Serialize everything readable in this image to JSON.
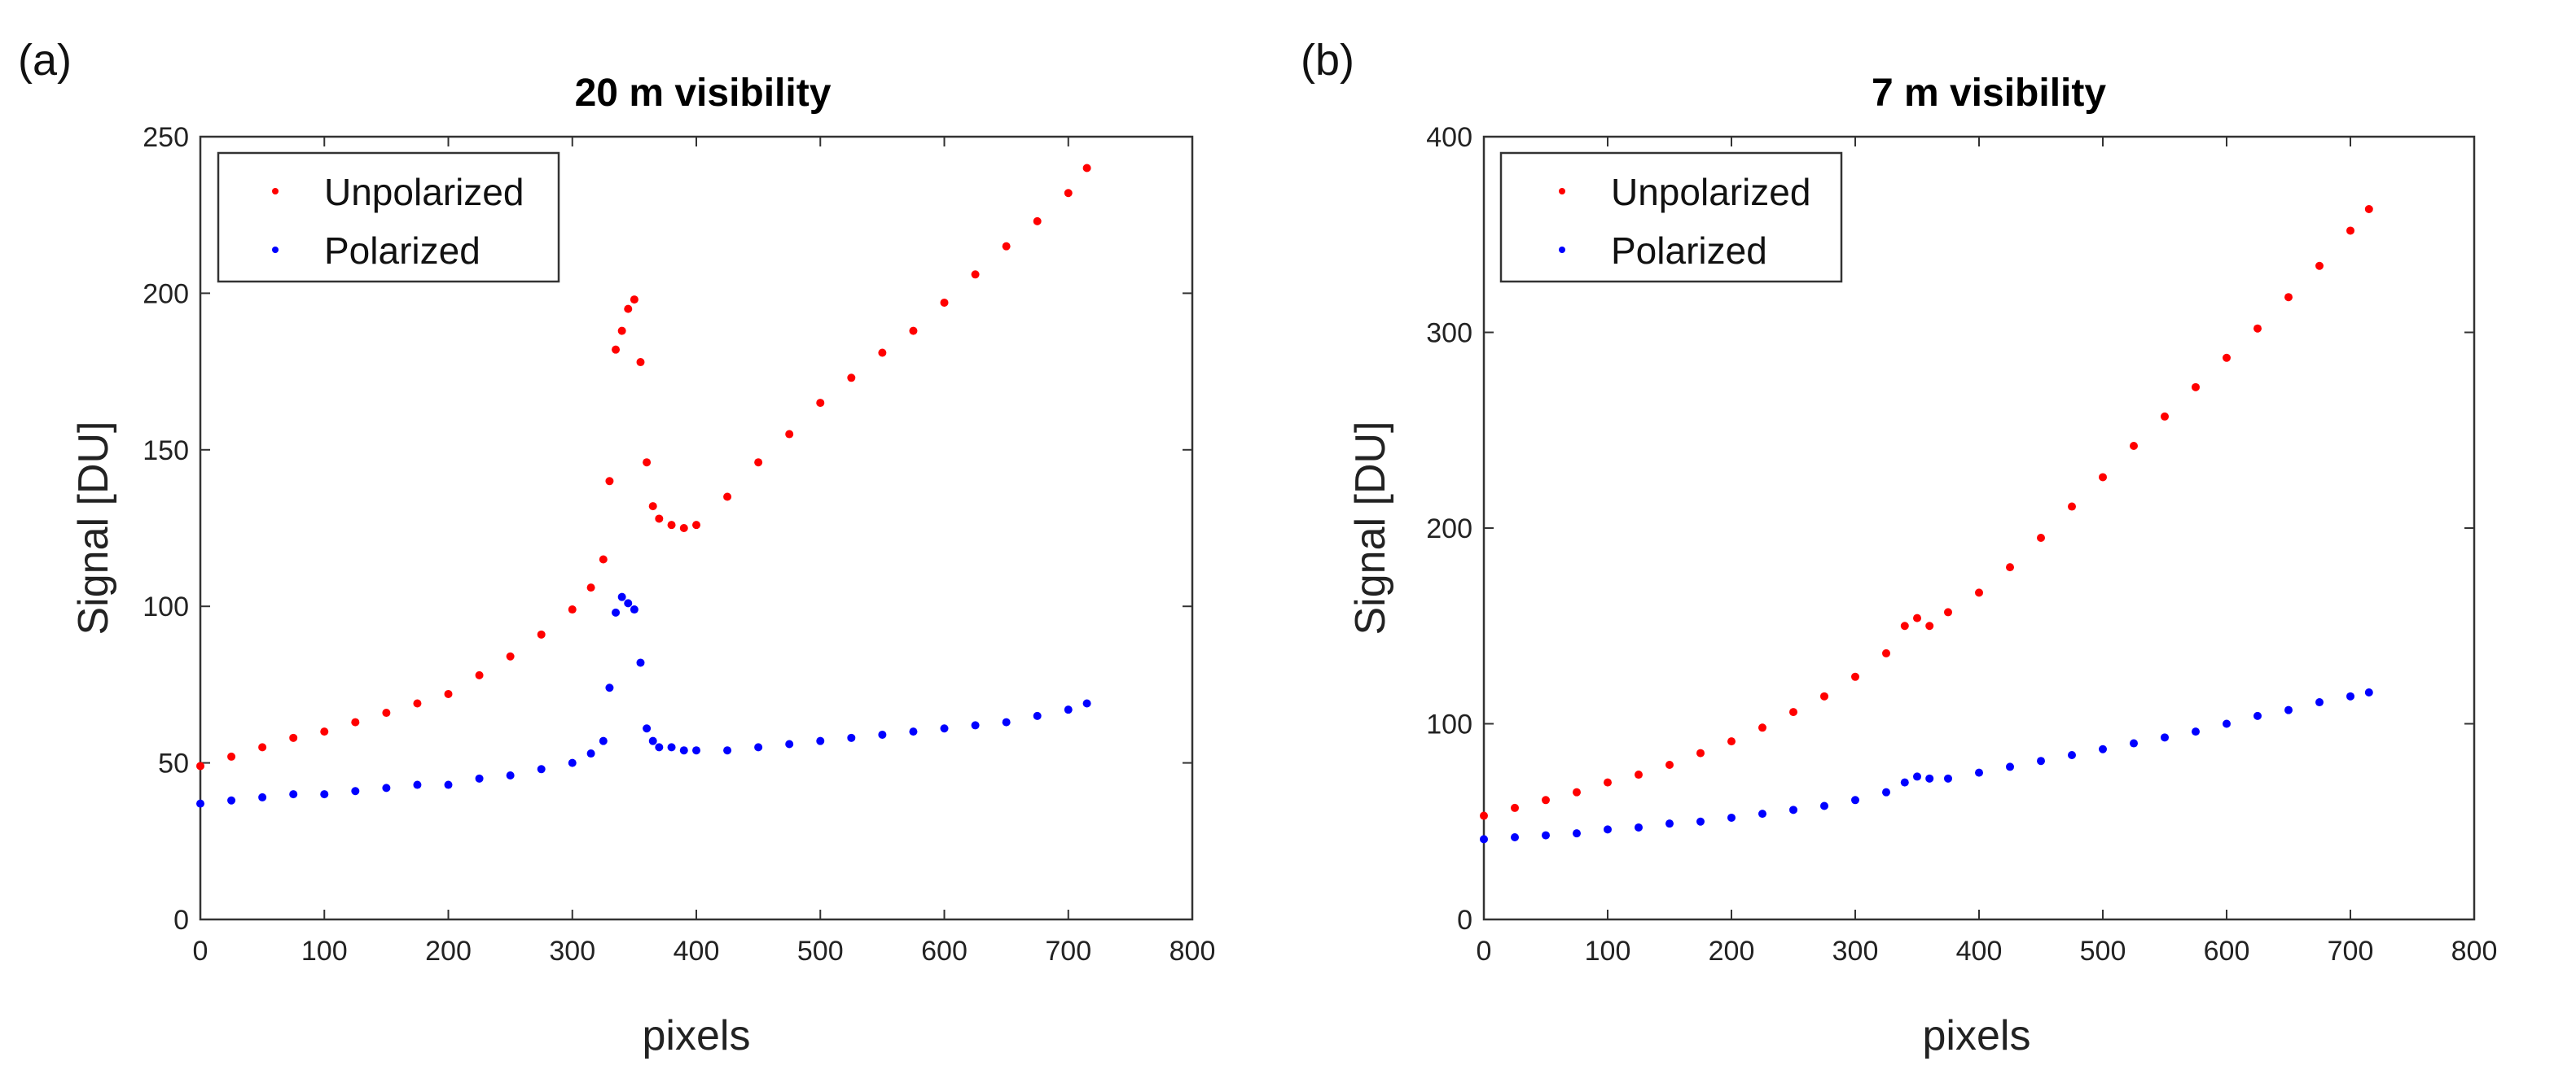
{
  "chart_data": [
    {
      "panel": "(a)",
      "type": "scatter",
      "title": "20 m visibility",
      "xlabel": "pixels",
      "ylabel": "Signal [DU]",
      "xlim": [
        0,
        800
      ],
      "ylim": [
        0,
        250
      ],
      "xticks": [
        0,
        100,
        200,
        300,
        400,
        500,
        600,
        700,
        800
      ],
      "yticks": [
        0,
        50,
        100,
        150,
        200,
        250
      ],
      "grid": false,
      "legend_position": "top-left",
      "series": [
        {
          "name": "Unpolarized",
          "color": "#ff0000",
          "x": [
            0,
            25,
            50,
            75,
            100,
            125,
            150,
            175,
            200,
            225,
            250,
            275,
            300,
            315,
            325,
            330,
            335,
            340,
            345,
            350,
            355,
            360,
            365,
            370,
            380,
            390,
            400,
            425,
            450,
            475,
            500,
            525,
            550,
            575,
            600,
            625,
            650,
            675,
            700,
            715
          ],
          "y": [
            49,
            52,
            55,
            58,
            60,
            63,
            66,
            69,
            72,
            78,
            84,
            91,
            99,
            106,
            115,
            140,
            182,
            188,
            195,
            198,
            178,
            146,
            132,
            128,
            126,
            125,
            126,
            135,
            146,
            155,
            165,
            173,
            181,
            188,
            197,
            206,
            215,
            223,
            232,
            240
          ]
        },
        {
          "name": "Polarized",
          "color": "#0000ff",
          "x": [
            0,
            25,
            50,
            75,
            100,
            125,
            150,
            175,
            200,
            225,
            250,
            275,
            300,
            315,
            325,
            330,
            335,
            340,
            345,
            350,
            355,
            360,
            365,
            370,
            380,
            390,
            400,
            425,
            450,
            475,
            500,
            525,
            550,
            575,
            600,
            625,
            650,
            675,
            700,
            715
          ],
          "y": [
            37,
            38,
            39,
            40,
            40,
            41,
            42,
            43,
            43,
            45,
            46,
            48,
            50,
            53,
            57,
            74,
            98,
            103,
            101,
            99,
            82,
            61,
            57,
            55,
            55,
            54,
            54,
            54,
            55,
            56,
            57,
            58,
            59,
            60,
            61,
            62,
            63,
            65,
            67,
            69
          ]
        }
      ]
    },
    {
      "panel": "(b)",
      "type": "scatter",
      "title": "7 m visibility",
      "xlabel": "pixels",
      "ylabel": "Signal [DU]",
      "xlim": [
        0,
        800
      ],
      "ylim": [
        0,
        400
      ],
      "xticks": [
        0,
        100,
        200,
        300,
        400,
        500,
        600,
        700,
        800
      ],
      "yticks": [
        0,
        100,
        200,
        300,
        400
      ],
      "grid": false,
      "legend_position": "top-left",
      "series": [
        {
          "name": "Unpolarized",
          "color": "#ff0000",
          "x": [
            0,
            25,
            50,
            75,
            100,
            125,
            150,
            175,
            200,
            225,
            250,
            275,
            300,
            325,
            340,
            350,
            360,
            375,
            400,
            425,
            450,
            475,
            500,
            525,
            550,
            575,
            600,
            625,
            650,
            675,
            700,
            715
          ],
          "y": [
            53,
            57,
            61,
            65,
            70,
            74,
            79,
            85,
            91,
            98,
            106,
            114,
            124,
            136,
            150,
            154,
            150,
            157,
            167,
            180,
            195,
            211,
            226,
            242,
            257,
            272,
            287,
            302,
            318,
            334,
            352,
            363
          ]
        },
        {
          "name": "Polarized",
          "color": "#0000ff",
          "x": [
            0,
            25,
            50,
            75,
            100,
            125,
            150,
            175,
            200,
            225,
            250,
            275,
            300,
            325,
            340,
            350,
            360,
            375,
            400,
            425,
            450,
            475,
            500,
            525,
            550,
            575,
            600,
            625,
            650,
            675,
            700,
            715
          ],
          "y": [
            41,
            42,
            43,
            44,
            46,
            47,
            49,
            50,
            52,
            54,
            56,
            58,
            61,
            65,
            70,
            73,
            72,
            72,
            75,
            78,
            81,
            84,
            87,
            90,
            93,
            96,
            100,
            104,
            107,
            111,
            114,
            116
          ]
        }
      ]
    }
  ]
}
